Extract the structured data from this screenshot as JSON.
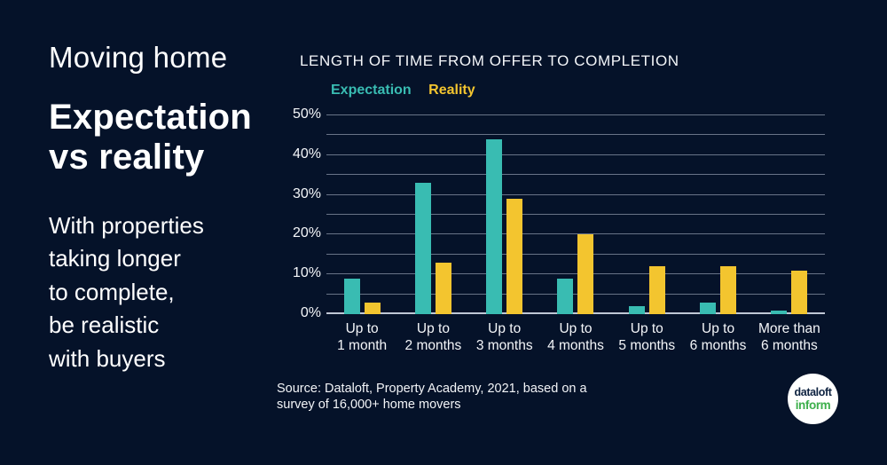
{
  "colors": {
    "background": "#051229",
    "expectation": "#39bcb2",
    "reality": "#f3c52f",
    "logo_navy": "#0d2240",
    "logo_green": "#3caf4b"
  },
  "left_panel": {
    "kicker": "Moving home",
    "headline_line1": "Expectation",
    "headline_line2": "vs reality",
    "body_lines": [
      "With properties",
      "taking longer",
      "to complete,",
      "be realistic",
      "with buyers"
    ]
  },
  "chart_data": {
    "type": "bar",
    "title": "LENGTH OF TIME FROM OFFER TO COMPLETION",
    "categories": [
      "Up to 1 month",
      "Up to 2 months",
      "Up to 3 months",
      "Up to 4 months",
      "Up to 5 months",
      "Up to 6 months",
      "More than 6 months"
    ],
    "category_lines": [
      [
        "Up to",
        "1 month"
      ],
      [
        "Up to",
        "2 months"
      ],
      [
        "Up to",
        "3 months"
      ],
      [
        "Up to",
        "4 months"
      ],
      [
        "Up to",
        "5 months"
      ],
      [
        "Up to",
        "6 months"
      ],
      [
        "More than",
        "6 months"
      ]
    ],
    "series": [
      {
        "name": "Expectation",
        "color": "#39bcb2",
        "values": [
          9,
          33,
          44,
          9,
          2,
          3,
          1
        ]
      },
      {
        "name": "Reality",
        "color": "#f3c52f",
        "values": [
          3,
          13,
          29,
          20,
          12,
          12,
          11
        ]
      }
    ],
    "ylim": [
      0,
      50
    ],
    "y_minor_step": 5,
    "y_major_step": 10,
    "y_tick_suffix": "%",
    "grid": true,
    "legend_position": "top-left",
    "xlabel": "",
    "ylabel": ""
  },
  "source": {
    "line1": "Source: Dataloft, Property Academy, 2021, based on a",
    "line2": "survey of 16,000+ home movers"
  },
  "logo": {
    "line1": "dataloft",
    "line2": "inform"
  }
}
